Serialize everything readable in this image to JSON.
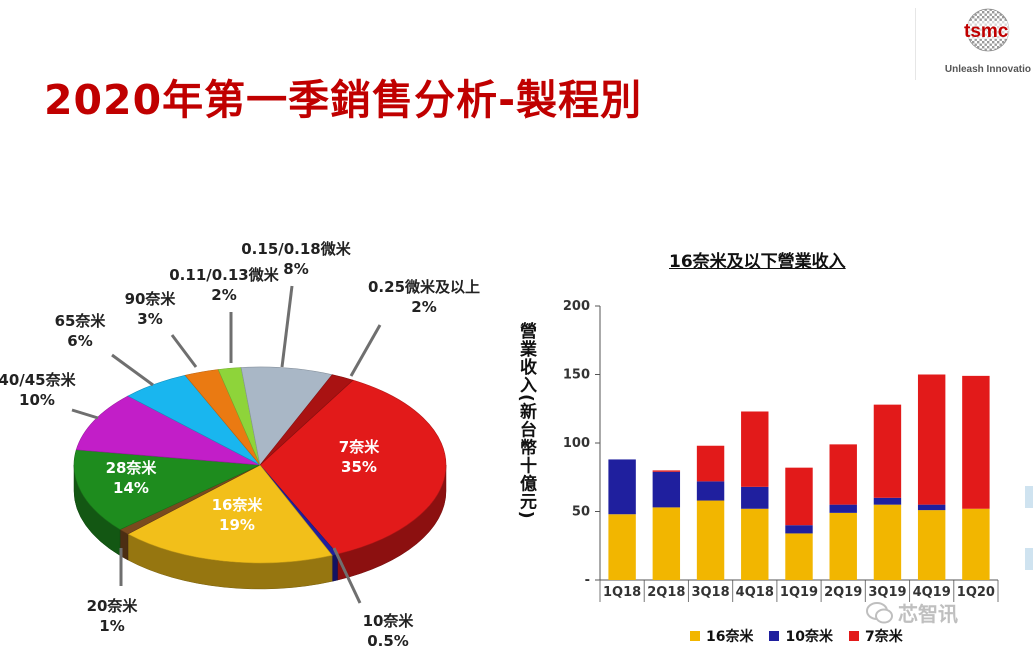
{
  "header": {
    "title": "2020年第一季銷售分析-製程別",
    "logo_text": "tsmc",
    "slogan": "Unleash Innovatio"
  },
  "colors": {
    "title": "#c00000",
    "s16": "#f2b600",
    "s10": "#1f1f9e",
    "s7": "#e21a1a"
  },
  "chart_data": [
    {
      "type": "pie",
      "title": "",
      "slices": [
        {
          "name": "7奈米",
          "label": "7奈米",
          "value": 35,
          "value_label": "35%",
          "color": "#e21a1a"
        },
        {
          "name": "10奈米",
          "label": "10奈米",
          "value": 0.5,
          "value_label": "0.5%",
          "color": "#1f1f9e"
        },
        {
          "name": "16奈米",
          "label": "16奈米",
          "value": 19,
          "value_label": "19%",
          "color": "#f2bf1a"
        },
        {
          "name": "20奈米",
          "label": "20奈米",
          "value": 1,
          "value_label": "1%",
          "color": "#7a4a1e"
        },
        {
          "name": "28奈米",
          "label": "28奈米",
          "value": 14,
          "value_label": "14%",
          "color": "#1e8c1e"
        },
        {
          "name": "40/45奈米",
          "label": "40/45奈米",
          "value": 10,
          "value_label": "10%",
          "color": "#c21ec8"
        },
        {
          "name": "65奈米",
          "label": "65奈米",
          "value": 6,
          "value_label": "6%",
          "color": "#19b6ef"
        },
        {
          "name": "90奈米",
          "label": "90奈米",
          "value": 3,
          "value_label": "3%",
          "color": "#ea7a12"
        },
        {
          "name": "0.11/0.13微米",
          "label": "0.11/0.13微米",
          "value": 2,
          "value_label": "2%",
          "color": "#8ed43a"
        },
        {
          "name": "0.15/0.18微米",
          "label": "0.15/0.18微米",
          "value": 8,
          "value_label": "8%",
          "color": "#a9b7c6"
        },
        {
          "name": "0.25微米及以上",
          "label": "0.25微米及以上",
          "value": 2,
          "value_label": "2%",
          "color": "#a91212"
        }
      ]
    },
    {
      "type": "bar",
      "stacked": true,
      "title": "16奈米及以下營業收入",
      "ylabel": "營業收入(新台幣十億元)",
      "ylim": [
        0,
        200
      ],
      "yticks": [
        "-",
        "50",
        "100",
        "150",
        "200"
      ],
      "categories": [
        "1Q18",
        "2Q18",
        "3Q18",
        "4Q18",
        "1Q19",
        "2Q19",
        "3Q19",
        "4Q19",
        "1Q20"
      ],
      "series": [
        {
          "name": "16奈米",
          "color": "#f2b600",
          "values": [
            48,
            53,
            58,
            52,
            34,
            49,
            55,
            51,
            52
          ]
        },
        {
          "name": "10奈米",
          "color": "#1f1f9e",
          "values": [
            40,
            26,
            14,
            16,
            6,
            6,
            5,
            4,
            0
          ]
        },
        {
          "name": "7奈米",
          "color": "#e21a1a",
          "values": [
            0,
            1,
            26,
            55,
            42,
            44,
            68,
            95,
            97
          ]
        }
      ],
      "legend": "bottom"
    }
  ],
  "watermark": "芯智讯"
}
